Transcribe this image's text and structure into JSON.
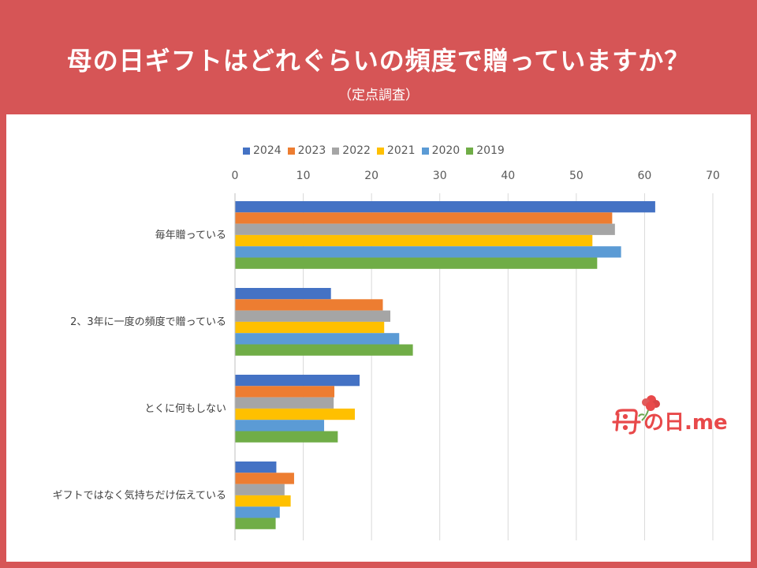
{
  "header": {
    "title": "母の日ギフトはどれぐらいの頻度で贈っていますか？",
    "subtitle": "（定点調査）"
  },
  "logo": {
    "text": "の日.me"
  },
  "colors": {
    "background": "#d65556",
    "panel": "#ffffff",
    "grid": "#d9d9d9",
    "axis_text": "#595959"
  },
  "chart_data": {
    "type": "bar",
    "orientation": "horizontal",
    "categories": [
      "毎年贈っている",
      "2、3年に一度の頻度で贈っている",
      "とくに何もしない",
      "ギフトではなく気持ちだけ伝えている"
    ],
    "series": [
      {
        "name": "2024",
        "color": "#4472c4",
        "values": [
          61.5,
          14.0,
          18.2,
          6.0
        ]
      },
      {
        "name": "2023",
        "color": "#ed7d31",
        "values": [
          55.2,
          21.6,
          14.5,
          8.6
        ]
      },
      {
        "name": "2022",
        "color": "#a5a5a5",
        "values": [
          55.6,
          22.7,
          14.4,
          7.2
        ]
      },
      {
        "name": "2021",
        "color": "#ffc000",
        "values": [
          52.3,
          21.8,
          17.5,
          8.1
        ]
      },
      {
        "name": "2020",
        "color": "#5b9bd5",
        "values": [
          56.5,
          24.0,
          13.0,
          6.5
        ]
      },
      {
        "name": "2019",
        "color": "#70ad47",
        "values": [
          53.0,
          26.0,
          15.0,
          5.9
        ]
      }
    ],
    "xlim": [
      0,
      70
    ],
    "xticks": [
      0,
      10,
      20,
      30,
      40,
      50,
      60,
      70
    ],
    "grid": true,
    "legend_position": "top"
  }
}
